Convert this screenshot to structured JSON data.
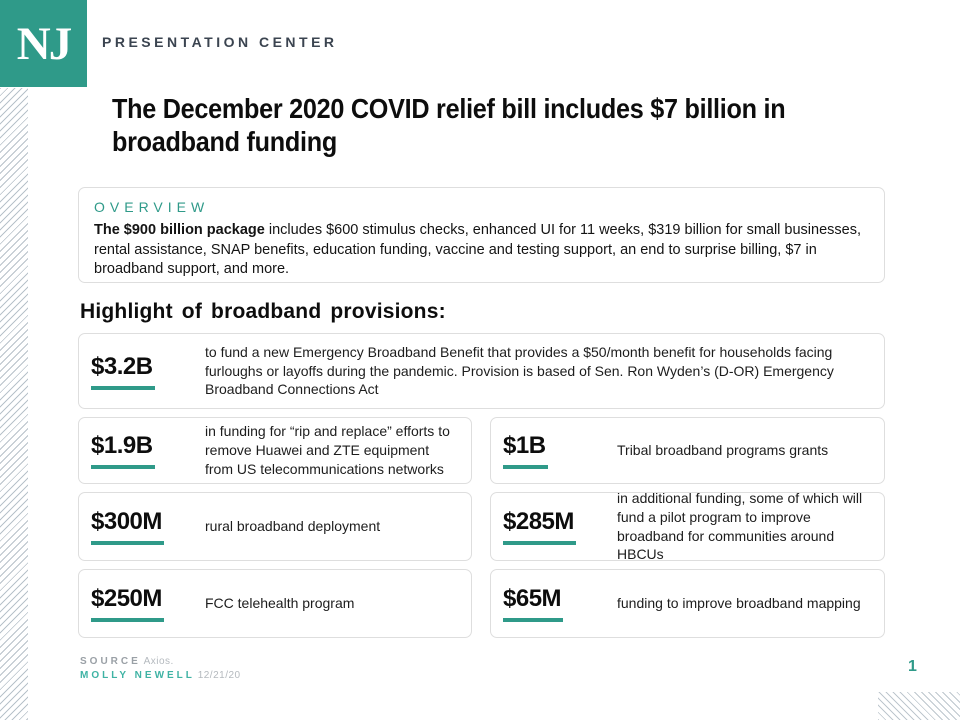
{
  "header": {
    "logo": "NJ",
    "brand": "PRESENTATION CENTER"
  },
  "title": "The December 2020 COVID relief bill includes $7 billion in broadband funding",
  "overview": {
    "label": "OVERVIEW",
    "lead": "The $900 billion package",
    "body": " includes $600 stimulus checks, enhanced UI for 11 weeks, $319 billion for small businesses, rental assistance, SNAP benefits, education funding, vaccine and testing support, an end to surprise billing, $7 in broadband support, and more."
  },
  "section_heading": "Highlight of broadband provisions:",
  "provisions": [
    {
      "amount": "$3.2B",
      "description": "to fund a new Emergency Broadband Benefit that provides a $50/month benefit for households facing furloughs or layoffs during the pandemic. Provision is based of Sen. Ron Wyden’s (D-OR) Emergency Broadband Connections Act"
    },
    {
      "amount": "$1.9B",
      "description": "in funding for “rip and replace” efforts to remove Huawei and ZTE equipment from US telecommunications networks"
    },
    {
      "amount": "$1B",
      "description": "Tribal broadband programs grants"
    },
    {
      "amount": "$300M",
      "description": "rural broadband deployment"
    },
    {
      "amount": "$285M",
      "description": "in additional funding, some of which will fund a pilot program to improve broadband for communities around HBCUs"
    },
    {
      "amount": "$250M",
      "description": "FCC telehealth program"
    },
    {
      "amount": "$65M",
      "description": "funding to improve broadband mapping"
    }
  ],
  "footer": {
    "source_label": "SOURCE",
    "source_value": "Axios.",
    "author": "MOLLY NEWELL",
    "date": "12/21/20",
    "page_number": "1"
  },
  "colors": {
    "teal": "#2F9A89",
    "header_dark": "#3B4450",
    "card_border": "#DEDEDE",
    "text": "#1C1C1C",
    "footer_gray": "#9AA0A6"
  }
}
